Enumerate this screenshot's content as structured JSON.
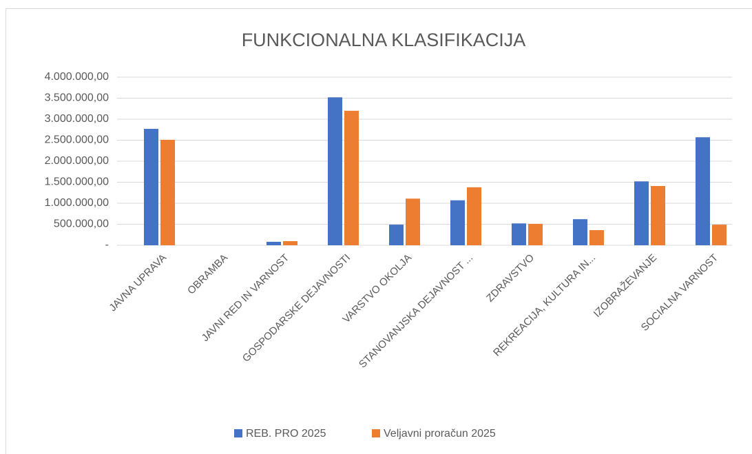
{
  "chart_data": {
    "type": "bar",
    "title": "FUNKCIONALNA KLASIFIKACIJA",
    "categories": [
      "JAVNA UPRAVA",
      "OBRAMBA",
      "JAVNI RED IN VARNOST",
      "GOSPODARSKE DEJAVNOSTI",
      "VARSTVO OKOLJA",
      "STANOVANJSKA DEJAVNOST ...",
      "ZDRAVSTVO",
      "REKREACIJA, KULTURA IN...",
      "IZOBRAŽEVANJE",
      "SOCIALNA VARNOST"
    ],
    "series": [
      {
        "name": "REB. PRO 2025",
        "color": "#4472c4",
        "values": [
          2770000,
          0,
          82000,
          3520000,
          490000,
          1070000,
          520000,
          620000,
          1520000,
          2570000
        ]
      },
      {
        "name": "Veljavni proračun 2025",
        "color": "#ed7d31",
        "values": [
          2510000,
          0,
          98000,
          3200000,
          1110000,
          1380000,
          510000,
          360000,
          1410000,
          490000
        ]
      }
    ],
    "ylim": [
      0,
      4000000
    ],
    "yticks": [
      {
        "value": 0,
        "label": "-"
      },
      {
        "value": 500000,
        "label": "500.000,00"
      },
      {
        "value": 1000000,
        "label": "1.000.000,00"
      },
      {
        "value": 1500000,
        "label": "1.500.000,00"
      },
      {
        "value": 2000000,
        "label": "2.000.000,00"
      },
      {
        "value": 2500000,
        "label": "2.500.000,00"
      },
      {
        "value": 3000000,
        "label": "3.000.000,00"
      },
      {
        "value": 3500000,
        "label": "3.500.000,00"
      },
      {
        "value": 4000000,
        "label": "4.000.000,00"
      }
    ],
    "grid": true,
    "legend": "bottom"
  }
}
